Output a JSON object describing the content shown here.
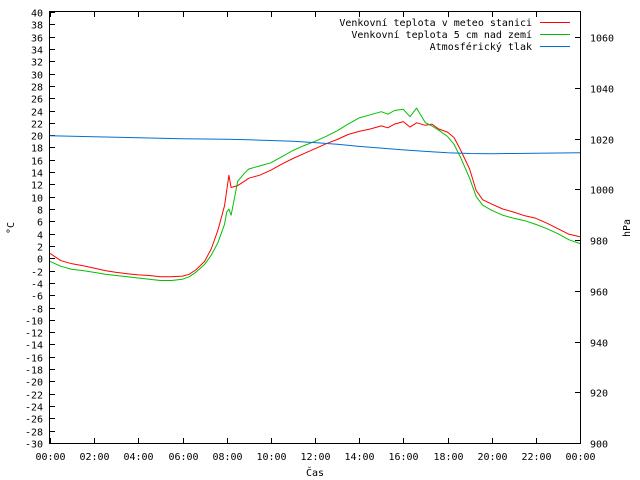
{
  "chart_data": {
    "type": "line",
    "title": "",
    "xlabel": "Čas",
    "ylabel": "°C",
    "y2label": "hPa",
    "xlim": [
      0,
      24
    ],
    "ylim": [
      -30,
      40
    ],
    "y2lim": [
      900,
      1070
    ],
    "grid": false,
    "legend_position": "top-right",
    "x_ticks": [
      "00:00",
      "02:00",
      "04:00",
      "06:00",
      "08:00",
      "10:00",
      "12:00",
      "14:00",
      "16:00",
      "18:00",
      "20:00",
      "22:00",
      "00:00"
    ],
    "y_ticks": [
      40,
      38,
      36,
      34,
      32,
      30,
      28,
      26,
      24,
      22,
      20,
      18,
      16,
      14,
      12,
      10,
      8,
      6,
      4,
      2,
      0,
      -2,
      -4,
      -6,
      -8,
      -10,
      -12,
      -14,
      -16,
      -18,
      -20,
      -22,
      -24,
      -26,
      -28,
      -30
    ],
    "y2_ticks": [
      1060,
      1040,
      1020,
      1000,
      980,
      960,
      940,
      920,
      900
    ],
    "series": [
      {
        "name": "Venkovní teplota v meteo stanici",
        "color": "#ff0000",
        "axis": "left",
        "x": [
          0,
          0.5,
          1,
          1.5,
          2,
          2.5,
          3,
          3.5,
          4,
          4.5,
          5,
          5.5,
          6,
          6.3,
          6.6,
          7,
          7.3,
          7.6,
          7.9,
          8,
          8.1,
          8.2,
          8.5,
          8.8,
          9,
          9.5,
          10,
          10.5,
          11,
          11.5,
          12,
          12.5,
          13,
          13.5,
          14,
          14.5,
          15,
          15.3,
          15.6,
          16,
          16.3,
          16.6,
          17,
          17.3,
          17.6,
          18,
          18.3,
          18.6,
          19,
          19.3,
          19.6,
          20,
          20.5,
          21,
          21.5,
          22,
          22.5,
          23,
          23.5,
          24
        ],
        "y": [
          0.8,
          -0.4,
          -0.9,
          -1.2,
          -1.6,
          -2.0,
          -2.3,
          -2.5,
          -2.7,
          -2.8,
          -3.0,
          -3.0,
          -2.9,
          -2.6,
          -1.9,
          -0.5,
          1.5,
          4.5,
          8.5,
          11.0,
          13.5,
          11.5,
          11.8,
          12.5,
          13.0,
          13.5,
          14.3,
          15.3,
          16.2,
          17.0,
          17.8,
          18.6,
          19.3,
          20.1,
          20.6,
          21.0,
          21.5,
          21.2,
          21.8,
          22.2,
          21.3,
          22.0,
          21.6,
          21.8,
          21.0,
          20.5,
          19.6,
          17.5,
          14.5,
          11.0,
          9.5,
          8.8,
          8.0,
          7.5,
          6.9,
          6.5,
          5.7,
          4.8,
          3.9,
          3.5
        ]
      },
      {
        "name": "Venkovní teplota 5 cm nad zemí",
        "color": "#00c000",
        "axis": "left",
        "x": [
          0,
          0.5,
          1,
          1.5,
          2,
          2.5,
          3,
          3.5,
          4,
          4.5,
          5,
          5.5,
          6,
          6.3,
          6.6,
          7,
          7.3,
          7.6,
          7.9,
          8,
          8.1,
          8.2,
          8.5,
          8.8,
          9,
          9.5,
          10,
          10.5,
          11,
          11.5,
          12,
          12.5,
          13,
          13.5,
          14,
          14.5,
          15,
          15.3,
          15.6,
          16,
          16.3,
          16.6,
          17,
          17.3,
          17.6,
          18,
          18.3,
          18.6,
          19,
          19.3,
          19.6,
          20,
          20.5,
          21,
          21.5,
          22,
          22.5,
          23,
          23.5,
          24
        ],
        "y": [
          -0.5,
          -1.3,
          -1.8,
          -2.0,
          -2.3,
          -2.6,
          -2.8,
          -3.0,
          -3.2,
          -3.4,
          -3.6,
          -3.6,
          -3.4,
          -3.0,
          -2.3,
          -1.0,
          0.5,
          2.5,
          5.5,
          7.5,
          8.0,
          7.0,
          12.5,
          13.8,
          14.5,
          15.0,
          15.5,
          16.5,
          17.5,
          18.3,
          19.0,
          19.8,
          20.7,
          21.8,
          22.8,
          23.3,
          23.8,
          23.4,
          24.0,
          24.2,
          23.0,
          24.4,
          22.0,
          21.5,
          20.8,
          19.8,
          18.5,
          16.3,
          13.0,
          10.0,
          8.6,
          7.8,
          7.0,
          6.5,
          6.1,
          5.5,
          4.8,
          4.0,
          3.0,
          2.4
        ]
      },
      {
        "name": "Atmosférický tlak",
        "color": "#0070d0",
        "axis": "right",
        "x": [
          0,
          1,
          2,
          3,
          4,
          5,
          6,
          7,
          8,
          9,
          10,
          11,
          12,
          13,
          14,
          15,
          16,
          17,
          18,
          19,
          20,
          21,
          22,
          23,
          24
        ],
        "y": [
          1021.2,
          1021.0,
          1020.8,
          1020.6,
          1020.4,
          1020.2,
          1020.0,
          1019.9,
          1019.8,
          1019.6,
          1019.3,
          1019.0,
          1018.5,
          1017.8,
          1017.0,
          1016.3,
          1015.6,
          1015.0,
          1014.5,
          1014.2,
          1014.1,
          1014.2,
          1014.3,
          1014.4,
          1014.5
        ]
      }
    ]
  }
}
